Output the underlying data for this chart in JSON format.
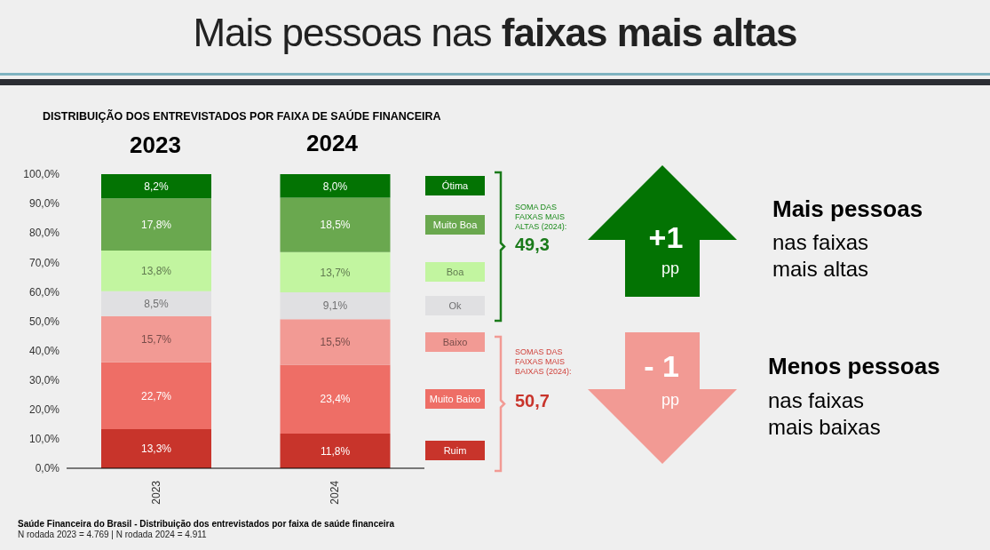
{
  "chart_data": {
    "type": "bar",
    "title": "Mais pessoas nas faixas mais altas",
    "subtitle": "DISTRIBUIÇÃO DOS ENTREVISTADOS POR FAIXA DE SAÚDE FINANCEIRA",
    "categories": [
      "2023",
      "2024"
    ],
    "stacked": true,
    "legend": "right",
    "ylim": [
      0,
      100
    ],
    "yticks": [
      {
        "value": 0,
        "label": "0,0%"
      },
      {
        "value": 10,
        "label": "10,0%"
      },
      {
        "value": 20,
        "label": "20,0%"
      },
      {
        "value": 30,
        "label": "30,0%"
      },
      {
        "value": 40,
        "label": "40,0%"
      },
      {
        "value": 50,
        "label": "50,0%"
      },
      {
        "value": 60,
        "label": "60,0%"
      },
      {
        "value": 70,
        "label": "70,0%"
      },
      {
        "value": 80,
        "label": "80,0%"
      },
      {
        "value": 90,
        "label": "90,0%"
      },
      {
        "value": 100,
        "label": "100,0%"
      }
    ],
    "series": [
      {
        "name": "Ruim",
        "color": "#c8342b",
        "values": [
          13.3,
          11.8
        ],
        "value_labels": [
          "13,3%",
          "11,8%"
        ]
      },
      {
        "name": "Muito Baixo",
        "color": "#ee6e66",
        "values": [
          22.7,
          23.4
        ],
        "value_labels": [
          "22,7%",
          "23,4%"
        ]
      },
      {
        "name": "Baixo",
        "color": "#f29a94",
        "values": [
          15.7,
          15.5
        ],
        "value_labels": [
          "15,7%",
          "15,5%"
        ]
      },
      {
        "name": "Ok",
        "color": "#e0e0e2",
        "values": [
          8.5,
          9.1
        ],
        "value_labels": [
          "8,5%",
          "9,1%"
        ]
      },
      {
        "name": "Boa",
        "color": "#c2f5a0",
        "values": [
          13.8,
          13.7
        ],
        "value_labels": [
          "13,8%",
          "13,7%"
        ]
      },
      {
        "name": "Muito Boa",
        "color": "#6aa84f",
        "values": [
          17.8,
          18.5
        ],
        "value_labels": [
          "17,8%",
          "18,5%"
        ]
      },
      {
        "name": "Ótima",
        "color": "#037303",
        "values": [
          8.2,
          8.0
        ],
        "value_labels": [
          "8,2%",
          "8,0%"
        ]
      }
    ],
    "annotations": [
      "2023",
      "2024",
      "SOMA DAS FAIXAS MAIS ALTAS (2024):",
      "49,3",
      "SOMAS DAS FAIXAS MAIS BAIXAS (2024):",
      "50,7",
      "+1",
      "pp",
      "- 1",
      "pp",
      "Mais pessoas",
      "nas faixas mais altas",
      "Menos pessoas",
      "nas faixas mais baixas",
      "Saúde Financeira do Brasil - Distribuição dos entrevistados por faixa de saúde financeira",
      "N rodada 2023 = 4.769 | N rodada 2024 = 4.911"
    ]
  }
}
